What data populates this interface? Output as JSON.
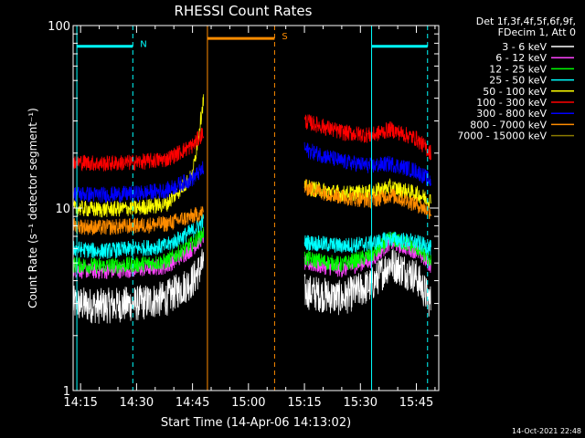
{
  "chart_data": {
    "type": "line",
    "title": "RHESSI Count Rates",
    "xlabel": "Start Time (14-Apr-06 14:13:02)",
    "ylabel": "Count Rate (s⁻¹ detector segment⁻¹)",
    "y_scale": "log",
    "ylim": [
      1,
      100
    ],
    "xlim": [
      "14:13",
      "15:51"
    ],
    "x_ticks": [
      "14:15",
      "14:30",
      "14:45",
      "15:00",
      "15:15",
      "15:30",
      "15:45"
    ],
    "y_ticks": [
      "1",
      "10",
      "100"
    ],
    "grid": false,
    "legend_placement": "top-right outside",
    "legend_header": [
      "Det 1f,3f,4f,5f,6f,9f,",
      "FDecim 1, Att 0"
    ],
    "footer_timestamp": "14-Oct-2021 22:48",
    "data_gaps": [
      [
        "14:49",
        "15:15"
      ]
    ],
    "series": [
      {
        "name": "3 - 6 keV",
        "color": "#ffffff",
        "x": [
          "14:13",
          "14:20",
          "14:30",
          "14:38",
          "14:45",
          "14:48",
          "15:15",
          "15:25",
          "15:33",
          "15:38",
          "15:45",
          "15:49"
        ],
        "values": [
          3.0,
          2.9,
          3.0,
          3.2,
          4.0,
          5.0,
          3.5,
          3.2,
          3.8,
          5.0,
          4.2,
          3.0
        ]
      },
      {
        "name": "6 - 12 keV",
        "color": "#ff44ff",
        "x": [
          "14:13",
          "14:20",
          "14:30",
          "14:38",
          "14:45",
          "14:48",
          "15:15",
          "15:25",
          "15:33",
          "15:38",
          "15:45",
          "15:49"
        ],
        "values": [
          4.6,
          4.5,
          4.6,
          4.8,
          6.0,
          7.0,
          5.0,
          4.6,
          5.2,
          6.5,
          5.8,
          4.8
        ]
      },
      {
        "name": "12 - 25 keV",
        "color": "#00ff00",
        "x": [
          "14:13",
          "14:20",
          "14:30",
          "14:38",
          "14:45",
          "14:48",
          "15:15",
          "15:25",
          "15:33",
          "15:38",
          "15:45",
          "15:49"
        ],
        "values": [
          4.9,
          4.8,
          4.9,
          5.1,
          6.4,
          7.4,
          5.3,
          4.9,
          5.5,
          6.8,
          6.1,
          5.1
        ]
      },
      {
        "name": "25 - 50 keV",
        "color": "#00ffff",
        "x": [
          "14:13",
          "14:20",
          "14:30",
          "14:38",
          "14:45",
          "14:48",
          "15:15",
          "15:25",
          "15:33",
          "15:38",
          "15:45",
          "15:49"
        ],
        "values": [
          6.0,
          5.8,
          6.0,
          6.2,
          7.5,
          8.5,
          6.5,
          6.2,
          6.4,
          6.8,
          6.5,
          6.0
        ]
      },
      {
        "name": "50 - 100 keV",
        "color": "#ffff00",
        "x": [
          "14:13",
          "14:20",
          "14:30",
          "14:38",
          "14:45",
          "14:48",
          "15:15",
          "15:25",
          "15:33",
          "15:38",
          "15:45",
          "15:49"
        ],
        "values": [
          10.0,
          9.8,
          10.0,
          10.5,
          15.0,
          40.0,
          13.0,
          12.0,
          12.2,
          13.0,
          12.0,
          11.0
        ]
      },
      {
        "name": "100 - 300 keV",
        "color": "#ff0000",
        "x": [
          "14:13",
          "14:20",
          "14:30",
          "14:38",
          "14:45",
          "14:48",
          "15:15",
          "15:25",
          "15:33",
          "15:38",
          "15:45",
          "15:49"
        ],
        "values": [
          18.0,
          17.5,
          17.8,
          18.5,
          22.0,
          26.0,
          30.0,
          26.0,
          25.0,
          27.0,
          24.0,
          20.0
        ]
      },
      {
        "name": "300 - 800 keV",
        "color": "#0000ff",
        "x": [
          "14:13",
          "14:20",
          "14:30",
          "14:38",
          "14:45",
          "14:48",
          "15:15",
          "15:25",
          "15:33",
          "15:38",
          "15:45",
          "15:49"
        ],
        "values": [
          12.0,
          11.8,
          12.0,
          12.5,
          14.5,
          16.5,
          21.0,
          18.0,
          17.0,
          17.5,
          16.0,
          14.0
        ]
      },
      {
        "name": "800 - 7000 keV",
        "color": "#ff8c00",
        "x": [
          "14:13",
          "14:20",
          "14:30",
          "14:38",
          "14:45",
          "14:48",
          "15:15",
          "15:25",
          "15:33",
          "15:38",
          "15:45",
          "15:49"
        ],
        "values": [
          8.0,
          7.8,
          8.0,
          8.2,
          9.0,
          9.5,
          13.0,
          11.5,
          11.0,
          11.8,
          10.5,
          9.5
        ]
      },
      {
        "name": "7000 - 15000 keV",
        "color": "#8a7a00",
        "x": [],
        "values": []
      }
    ],
    "annotations": [
      {
        "label": "N",
        "color": "#00ffff",
        "x_start": "14:14",
        "x_end": "14:29",
        "y_level": 77
      },
      {
        "label": "",
        "color": "#00ffff",
        "x_start": "15:33",
        "x_end": "15:48",
        "y_level": 77
      },
      {
        "label": "S",
        "color": "#ff8c00",
        "x_start": "14:49",
        "x_end": "15:07",
        "y_level": 85
      }
    ],
    "vlines": [
      {
        "x": "14:14",
        "color": "#00ffff",
        "style": "solid"
      },
      {
        "x": "14:29",
        "color": "#00ffff",
        "style": "dashed"
      },
      {
        "x": "14:49",
        "color": "#ff8c00",
        "style": "solid"
      },
      {
        "x": "15:07",
        "color": "#ff8c00",
        "style": "dashed"
      },
      {
        "x": "15:33",
        "color": "#00ffff",
        "style": "solid"
      },
      {
        "x": "15:48",
        "color": "#00ffff",
        "style": "dashed"
      }
    ]
  }
}
